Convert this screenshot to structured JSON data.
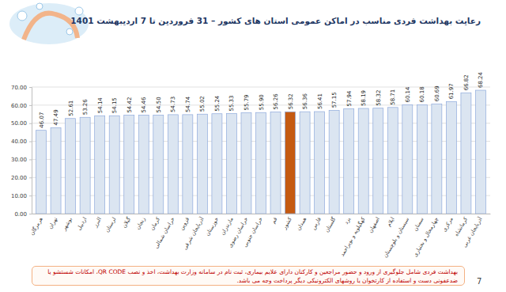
{
  "chart_data": {
    "type": "bar",
    "title": "رعایت بهداشت فردی مناسب در اماکن عمومی استان های کشور – 31 فروردین تا 7 اردیبهشت 1401",
    "categories": [
      "هرمزگان",
      "تهران",
      "بوشهر",
      "اردبیل",
      "البرز",
      "لرستان",
      "گیلان",
      "زنجان",
      "کرمان",
      "خراسان شمالی",
      "قزوین",
      "آذربایجان شرقی",
      "خوزستان",
      "مازندران",
      "خراسان رضوی",
      "خراسان جنوبی",
      "قم",
      "کشور",
      "همدان",
      "فارس",
      "گلستان",
      "یزد",
      "کهگیلویه و بویراحمد",
      "اصفهان",
      "ایلام",
      "سیستان و بلوچستان",
      "سمنان",
      "چهارمحال و بختیاری",
      "مرکزی",
      "کرمانشاه",
      "آذربایجان غربی"
    ],
    "values": [
      46.07,
      47.49,
      52.61,
      53.26,
      54.14,
      54.15,
      54.42,
      54.46,
      54.5,
      54.73,
      54.74,
      55.02,
      55.24,
      55.33,
      55.79,
      55.9,
      56.26,
      56.32,
      56.36,
      56.41,
      57.15,
      57.94,
      58.19,
      58.32,
      58.71,
      60.14,
      60.18,
      60.69,
      61.97,
      66.82,
      68.24
    ],
    "value_labels": [
      "46.07",
      "47.49",
      "52.61",
      "53.26",
      "54.14",
      "54.15",
      "54.42",
      "54.46",
      "54.50",
      "54.73",
      "54.74",
      "55.02",
      "55.24",
      "55.33",
      "55.79",
      "55.90",
      "56.26",
      "56.32",
      "56.36",
      "56.41",
      "57.15",
      "57.94",
      "58.19",
      "58.32",
      "58.71",
      "60.14",
      "60.18",
      "60.69",
      "61.97",
      "66.82",
      "68.24"
    ],
    "colors": [
      "#dbe5f1",
      "#dbe5f1",
      "#dbe5f1",
      "#dbe5f1",
      "#dbe5f1",
      "#dbe5f1",
      "#dbe5f1",
      "#dbe5f1",
      "#dbe5f1",
      "#dbe5f1",
      "#dbe5f1",
      "#dbe5f1",
      "#dbe5f1",
      "#dbe5f1",
      "#dbe5f1",
      "#dbe5f1",
      "#dbe5f1",
      "#c55a11",
      "#dbe5f1",
      "#dbe5f1",
      "#dbe5f1",
      "#dbe5f1",
      "#dbe5f1",
      "#dbe5f1",
      "#dbe5f1",
      "#dbe5f1",
      "#dbe5f1",
      "#dbe5f1",
      "#dbe5f1",
      "#dbe5f1",
      "#dbe5f1"
    ],
    "ylim": [
      0,
      70
    ],
    "yticks": [
      {
        "value": 0,
        "label": "0.00"
      },
      {
        "value": 10,
        "label": "10.00"
      },
      {
        "value": 20,
        "label": "20.00"
      },
      {
        "value": 30,
        "label": "30.00"
      },
      {
        "value": 40,
        "label": "40.00"
      },
      {
        "value": 50,
        "label": "50.00"
      },
      {
        "value": 60,
        "label": "60.00"
      },
      {
        "value": 70,
        "label": "70.00"
      }
    ],
    "grid": true,
    "data_labels": true,
    "footnote": "بهداشت فردی شامل جلوگیری از ورود و حضور مراجعین و کارکنان دارای علایم بیماری، ثبت نام در سامانه وزارت بهداشت، اخذ و نصب QR CODE، امکانات شستشو یا ضدعفونی دست و استفاده از کارتخوان یا روشهای الکترونیکی دیگر پرداخت وجه می باشد.",
    "page_number": 7
  }
}
